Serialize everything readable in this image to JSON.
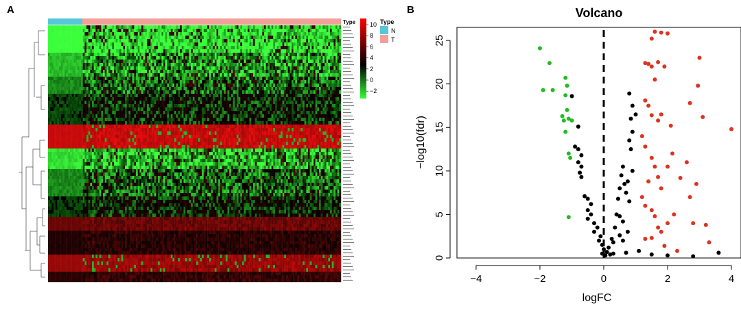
{
  "panels": {
    "a_label": "A",
    "b_label": "B"
  },
  "heatmap": {
    "annotation_label": "Type",
    "legend": {
      "title": "Type",
      "entries": [
        {
          "label": "N",
          "color": "#55c7d8"
        },
        {
          "label": "T",
          "color": "#f4a09a"
        }
      ]
    },
    "color_scale": {
      "ticks": [
        "10",
        "8",
        "6",
        "4",
        "2",
        "0",
        "−2"
      ],
      "high_color": "#ff0000",
      "mid_color": "#000000",
      "low_color": "#33ff33"
    }
  },
  "chart_data": {
    "type": "scatter",
    "title": "Volcano",
    "xlabel": "logFC",
    "ylabel": "−log10(fdr)",
    "xlim": [
      -4.6,
      4.3
    ],
    "ylim": [
      0,
      26.5
    ],
    "x_ticks": [
      {
        "value": -4,
        "label": "−4"
      },
      {
        "value": -2,
        "label": "−2"
      },
      {
        "value": 0,
        "label": "0"
      },
      {
        "value": 2,
        "label": "2"
      },
      {
        "value": 4,
        "label": "4"
      }
    ],
    "y_ticks": [
      {
        "value": 0,
        "label": "0"
      },
      {
        "value": 5,
        "label": "5"
      },
      {
        "value": 10,
        "label": "10"
      },
      {
        "value": 15,
        "label": "15"
      },
      {
        "value": 20,
        "label": "20"
      },
      {
        "value": 25,
        "label": "25"
      }
    ],
    "threshold_x": 0,
    "series": [
      {
        "color": "#22bb22",
        "points": [
          [
            -2.0,
            24.1
          ],
          [
            -1.7,
            22.4
          ],
          [
            -1.6,
            19.3
          ],
          [
            -1.2,
            20.7
          ],
          [
            -1.15,
            19.8
          ],
          [
            -1.2,
            18.7
          ],
          [
            -1.15,
            17.0
          ],
          [
            -1.3,
            16.3
          ],
          [
            -1.25,
            15.8
          ],
          [
            -1.1,
            16.0
          ],
          [
            -1.0,
            15.8
          ],
          [
            -1.2,
            14.5
          ],
          [
            -1.1,
            12.0
          ],
          [
            -1.05,
            11.5
          ],
          [
            -1.1,
            4.7
          ],
          [
            -1.9,
            19.3
          ]
        ]
      },
      {
        "color": "#000000",
        "points": [
          [
            -1.0,
            18.6
          ],
          [
            -0.8,
            15.1
          ],
          [
            -0.9,
            12.8
          ],
          [
            -0.8,
            12.5
          ],
          [
            -0.7,
            11.8
          ],
          [
            -0.8,
            11.0
          ],
          [
            -0.7,
            10.5
          ],
          [
            -0.75,
            9.8
          ],
          [
            -0.7,
            9.3
          ],
          [
            -0.6,
            7.1
          ],
          [
            -0.5,
            6.8
          ],
          [
            -0.4,
            6.2
          ],
          [
            -0.5,
            5.5
          ],
          [
            -0.4,
            5.0
          ],
          [
            -0.5,
            4.5
          ],
          [
            -0.3,
            4.0
          ],
          [
            -0.2,
            3.5
          ],
          [
            -0.3,
            3.0
          ],
          [
            -0.1,
            2.5
          ],
          [
            -0.15,
            2.0
          ],
          [
            -0.05,
            1.5
          ],
          [
            0.0,
            1.0
          ],
          [
            -0.05,
            0.5
          ],
          [
            0.05,
            0.3
          ],
          [
            0.1,
            0.7
          ],
          [
            0.15,
            1.2
          ],
          [
            0.2,
            0.4
          ],
          [
            0.25,
            2.2
          ],
          [
            0.3,
            1.8
          ],
          [
            0.35,
            3.5
          ],
          [
            0.4,
            5.0
          ],
          [
            0.45,
            6.8
          ],
          [
            0.5,
            8.0
          ],
          [
            0.55,
            9.5
          ],
          [
            0.6,
            10.5
          ],
          [
            0.65,
            8.5
          ],
          [
            0.7,
            7.5
          ],
          [
            0.75,
            8.8
          ],
          [
            0.8,
            6.5
          ],
          [
            0.85,
            12.5
          ],
          [
            0.8,
            13.5
          ],
          [
            0.9,
            14.5
          ],
          [
            0.85,
            16.0
          ],
          [
            0.9,
            17.5
          ],
          [
            0.8,
            18.9
          ],
          [
            1.0,
            16.5
          ],
          [
            0.6,
            4.2
          ],
          [
            0.5,
            2.6
          ],
          [
            0.3,
            0.5
          ],
          [
            0.7,
            0.6
          ],
          [
            1.1,
            0.8
          ],
          [
            1.5,
            0.4
          ],
          [
            2.0,
            0.3
          ],
          [
            2.8,
            0.2
          ],
          [
            3.6,
            0.6
          ],
          [
            0.9,
            10.0
          ],
          [
            0.75,
            3.0
          ],
          [
            0.6,
            2.0
          ],
          [
            0.5,
            4.8
          ]
        ]
      },
      {
        "color": "#dd3322",
        "points": [
          [
            1.6,
            26.0
          ],
          [
            1.8,
            25.9
          ],
          [
            2.0,
            25.8
          ],
          [
            1.5,
            25.2
          ],
          [
            1.3,
            22.4
          ],
          [
            1.4,
            22.3
          ],
          [
            1.5,
            22.0
          ],
          [
            1.7,
            22.5
          ],
          [
            1.9,
            22.0
          ],
          [
            3.0,
            23.0
          ],
          [
            1.6,
            20.5
          ],
          [
            2.95,
            19.8
          ],
          [
            1.3,
            18.1
          ],
          [
            1.4,
            17.5
          ],
          [
            1.5,
            16.4
          ],
          [
            1.7,
            15.8
          ],
          [
            1.8,
            16.5
          ],
          [
            2.1,
            15.2
          ],
          [
            3.1,
            16.2
          ],
          [
            2.7,
            17.8
          ],
          [
            4.0,
            14.8
          ],
          [
            1.2,
            14.0
          ],
          [
            1.3,
            12.8
          ],
          [
            1.5,
            11.5
          ],
          [
            1.6,
            10.5
          ],
          [
            1.7,
            9.3
          ],
          [
            1.8,
            8.0
          ],
          [
            2.0,
            10.5
          ],
          [
            2.4,
            9.2
          ],
          [
            2.6,
            11.0
          ],
          [
            2.9,
            8.5
          ],
          [
            1.2,
            7.0
          ],
          [
            1.3,
            6.0
          ],
          [
            1.5,
            5.5
          ],
          [
            1.6,
            4.8
          ],
          [
            1.7,
            3.5
          ],
          [
            1.8,
            3.0
          ],
          [
            2.0,
            4.0
          ],
          [
            2.2,
            5.0
          ],
          [
            2.8,
            4.0
          ],
          [
            3.2,
            3.8
          ],
          [
            3.3,
            1.8
          ],
          [
            1.3,
            2.2
          ],
          [
            1.5,
            2.3
          ],
          [
            1.9,
            1.4
          ],
          [
            2.3,
            0.8
          ],
          [
            1.4,
            8.8
          ],
          [
            2.15,
            12.0
          ],
          [
            2.7,
            7.0
          ]
        ]
      }
    ]
  }
}
